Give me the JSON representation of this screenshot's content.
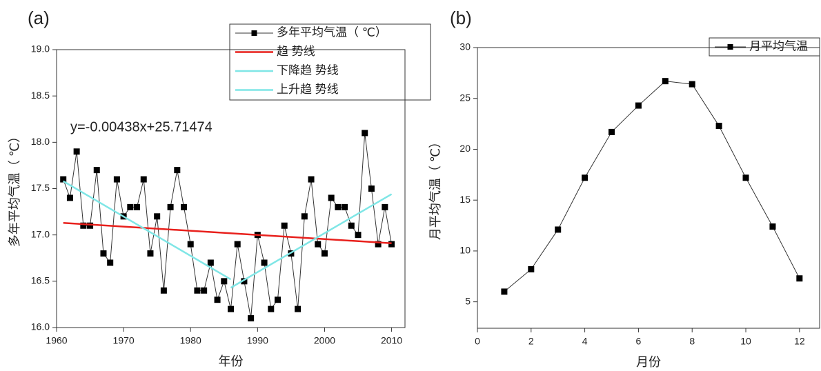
{
  "chart_data": [
    {
      "type": "line",
      "title": "(a)",
      "x_label": "年份",
      "y_label": "多年平均气温（ ℃）",
      "annotation": "y=-0.00438x+25.71474",
      "xlim": [
        1960,
        2012
      ],
      "ylim": [
        16,
        19
      ],
      "xticks": [
        1960,
        1970,
        1980,
        1990,
        2000,
        2010
      ],
      "yticks": [
        {
          "value": 16,
          "label": "16.0"
        },
        {
          "value": 16.5,
          "label": "16.5"
        },
        {
          "value": 17,
          "label": "17.0"
        },
        {
          "value": 17.5,
          "label": "17.5"
        },
        {
          "value": 18,
          "label": "18.0"
        },
        {
          "value": 18.5,
          "label": "18.5"
        },
        {
          "value": 19,
          "label": "19.0"
        }
      ],
      "series": [
        {
          "name": "多年平均气温（ ℃）",
          "color": "#333333",
          "marker": "square",
          "x": [
            1961,
            1962,
            1963,
            1964,
            1965,
            1966,
            1967,
            1968,
            1969,
            1970,
            1971,
            1972,
            1973,
            1974,
            1975,
            1976,
            1977,
            1978,
            1979,
            1980,
            1981,
            1982,
            1983,
            1984,
            1985,
            1986,
            1987,
            1988,
            1989,
            1990,
            1991,
            1992,
            1993,
            1994,
            1995,
            1996,
            1997,
            1998,
            1999,
            2000,
            2001,
            2002,
            2003,
            2004,
            2005,
            2006,
            2007,
            2008,
            2009,
            2010
          ],
          "values": [
            17.6,
            17.4,
            17.9,
            17.1,
            17.1,
            17.7,
            16.8,
            16.7,
            17.6,
            17.2,
            17.3,
            17.3,
            17.6,
            16.8,
            17.2,
            16.4,
            17.3,
            17.7,
            17.3,
            16.9,
            16.4,
            16.4,
            16.7,
            16.3,
            16.5,
            16.2,
            16.9,
            16.5,
            16.1,
            17.0,
            16.7,
            16.2,
            16.3,
            17.1,
            16.8,
            16.2,
            17.2,
            17.6,
            16.9,
            16.8,
            17.4,
            17.3,
            17.3,
            17.1,
            17.0,
            18.1,
            17.5,
            16.9,
            17.3,
            16.9
          ]
        },
        {
          "name": "趋 势线",
          "color": "#e8201c",
          "x": [
            1961,
            2010
          ],
          "values": [
            17.13,
            16.91
          ]
        },
        {
          "name": "下降趋 势线",
          "color": "#7fe6e6",
          "x": [
            1961,
            1986
          ],
          "values": [
            17.58,
            16.52
          ]
        },
        {
          "name": "上升趋 势线",
          "color": "#7fe6e6",
          "x": [
            1986,
            2010
          ],
          "values": [
            16.43,
            17.44
          ]
        }
      ]
    },
    {
      "type": "line",
      "title": "(b)",
      "x_label": "月份",
      "y_label": "月平均气温（ ℃）",
      "xlim": [
        0,
        12.75
      ],
      "ylim": [
        2.4,
        30
      ],
      "xticks": [
        0,
        2,
        4,
        6,
        8,
        10,
        12
      ],
      "yticks": [
        5,
        10,
        15,
        20,
        25,
        30
      ],
      "series": [
        {
          "name": "月平均气温",
          "color": "#333333",
          "marker": "square",
          "x": [
            1,
            2,
            3,
            4,
            5,
            6,
            7,
            8,
            9,
            10,
            11,
            12
          ],
          "values": [
            6.0,
            8.2,
            12.1,
            17.2,
            21.7,
            24.3,
            26.7,
            26.4,
            22.3,
            17.2,
            12.4,
            7.3
          ]
        }
      ]
    }
  ]
}
